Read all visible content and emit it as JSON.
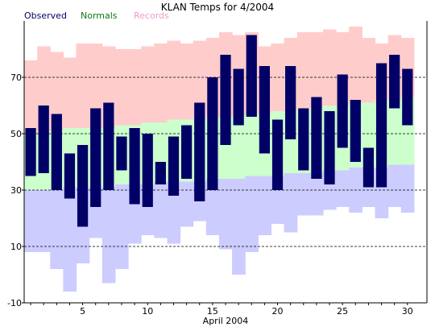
{
  "chart_data": {
    "type": "bar",
    "title": "KLAN Temps for 4/2004",
    "xlabel": "April 2004",
    "ylabel": "",
    "ylim": [
      -10,
      90
    ],
    "xlim": [
      0,
      31
    ],
    "yticks": [
      -10,
      10,
      30,
      50,
      70
    ],
    "xticks": [
      5,
      10,
      15,
      20,
      25,
      30
    ],
    "grid": "dashed horizontal lines at y ticks",
    "legend": [
      {
        "label": "Observed",
        "color": "#000066"
      },
      {
        "label": "Normals",
        "color": "#117711"
      },
      {
        "label": "Records",
        "color": "#ee99cc"
      }
    ],
    "days": [
      1,
      2,
      3,
      4,
      5,
      6,
      7,
      8,
      9,
      10,
      11,
      12,
      13,
      14,
      15,
      16,
      17,
      18,
      19,
      20,
      21,
      22,
      23,
      24,
      25,
      26,
      27,
      28,
      29,
      30
    ],
    "observed": {
      "high": [
        52,
        60,
        57,
        43,
        46,
        59,
        61,
        49,
        52,
        50,
        40,
        49,
        53,
        61,
        70,
        78,
        73,
        85,
        74,
        55,
        74,
        59,
        63,
        58,
        71,
        62,
        45,
        75,
        78,
        73
      ],
      "low": [
        35,
        36,
        30,
        27,
        17,
        24,
        30,
        37,
        25,
        24,
        32,
        28,
        34,
        26,
        30,
        46,
        53,
        56,
        43,
        30,
        48,
        37,
        34,
        32,
        45,
        40,
        31,
        31,
        59,
        53
      ]
    },
    "normals": {
      "high": [
        50,
        51,
        51,
        52,
        52,
        52,
        52,
        53,
        53,
        54,
        54,
        55,
        55,
        55,
        56,
        56,
        56,
        57,
        57,
        58,
        58,
        59,
        59,
        60,
        60,
        61,
        61,
        62,
        62,
        63
      ],
      "low": [
        30,
        30,
        30,
        31,
        31,
        31,
        31,
        32,
        32,
        32,
        33,
        33,
        33,
        33,
        34,
        34,
        34,
        35,
        35,
        35,
        36,
        36,
        36,
        37,
        37,
        38,
        38,
        38,
        39,
        39
      ]
    },
    "records": {
      "high": [
        76,
        81,
        79,
        77,
        82,
        82,
        81,
        80,
        80,
        81,
        82,
        83,
        82,
        83,
        84,
        86,
        85,
        86,
        81,
        82,
        84,
        86,
        86,
        87,
        86,
        88,
        84,
        82,
        85,
        84
      ],
      "low": [
        8,
        8,
        2,
        -6,
        4,
        13,
        -3,
        2,
        11,
        14,
        13,
        11,
        17,
        19,
        14,
        9,
        0,
        8,
        14,
        18,
        15,
        21,
        21,
        23,
        24,
        22,
        24,
        20,
        24,
        22
      ]
    }
  }
}
